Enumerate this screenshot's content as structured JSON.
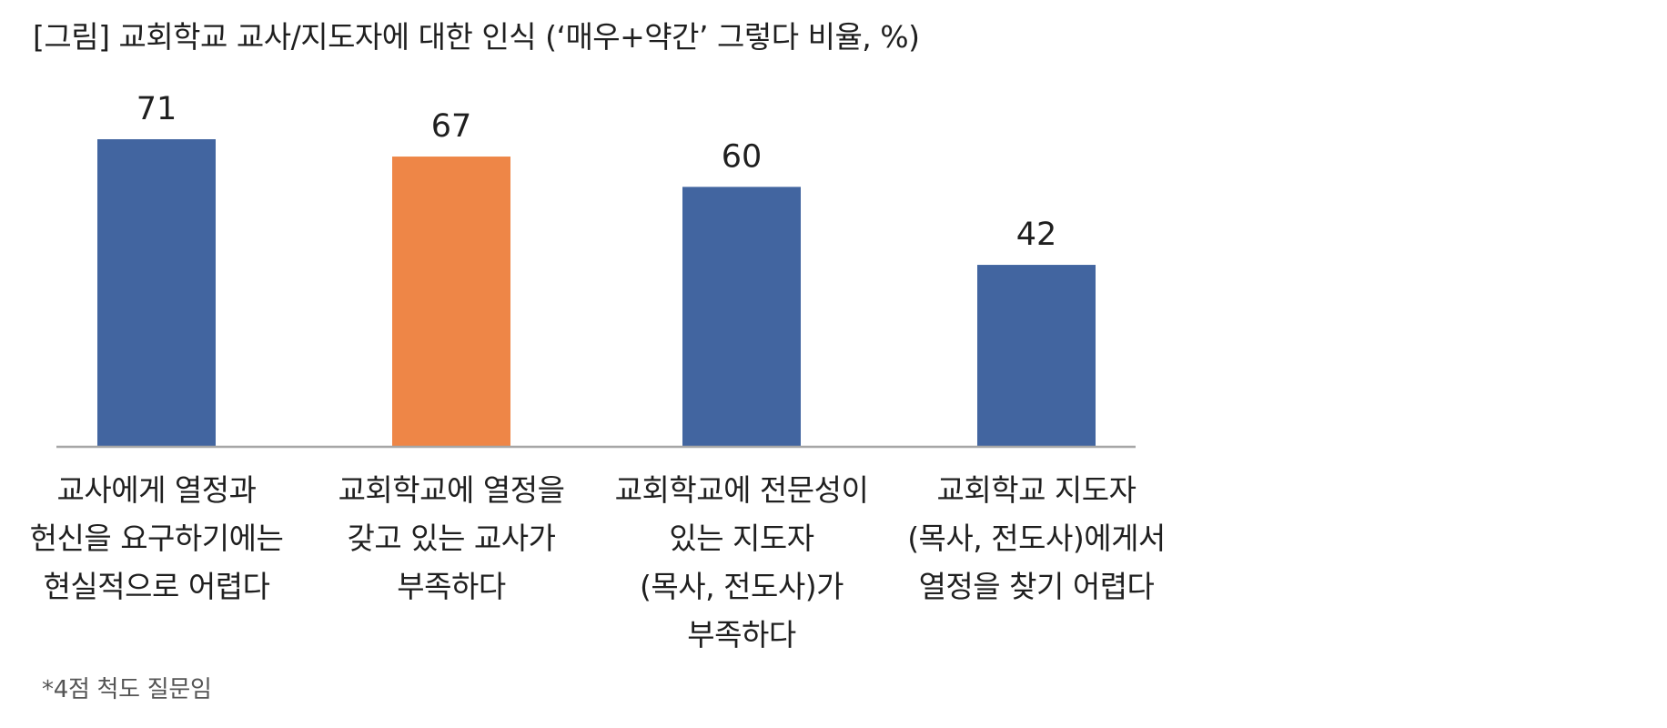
{
  "chart_data": {
    "type": "bar",
    "title": "[그림] 교회학교 교사/지도자에 대한 인식 (‘매우+약간’ 그렇다 비율, %)",
    "categories": [
      "교사에게 열정과\n헌신을 요구하기에는\n현실적으로 어렵다",
      "교회학교에 열정을\n갖고 있는 교사가\n부족하다",
      "교회학교에 전문성이\n있는 지도자\n(목사, 전도사)가\n부족하다",
      "교회학교 지도자\n(목사, 전도사)에게서\n열정을 찾기 어렵다"
    ],
    "values": [
      71,
      67,
      60,
      42
    ],
    "data_labels": [
      "71",
      "67",
      "60",
      "42"
    ],
    "bar_colors": [
      "#4265a0",
      "#ee8647",
      "#4265a0",
      "#4265a0"
    ],
    "ylim": [
      0,
      71
    ],
    "xlabel": "",
    "ylabel": "",
    "grid": false,
    "legend": "none"
  },
  "footnote": "*4점 척도 질문임",
  "colors": {
    "primary_bar": "#4265a0",
    "highlight_bar": "#ee8647",
    "axis_line": "#a6a6a6"
  }
}
